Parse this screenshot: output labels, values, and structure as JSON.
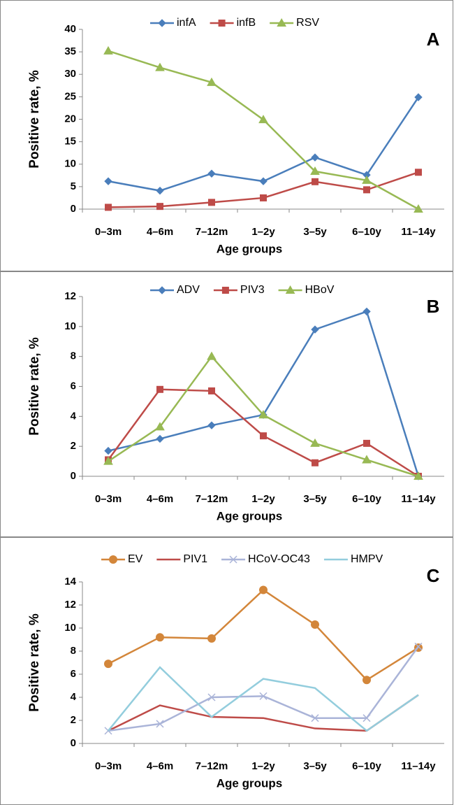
{
  "chart_data": [
    {
      "type": "line",
      "panel": "A",
      "y_label": "Positive rate, %",
      "x_label": "Age groups",
      "categories": [
        "0–3m",
        "4–6m",
        "7–12m",
        "1–2y",
        "3–5y",
        "6–10y",
        "11–14y"
      ],
      "ylim": [
        0,
        40
      ],
      "yticks": [
        0,
        5,
        10,
        15,
        20,
        25,
        30,
        35,
        40
      ],
      "series": [
        {
          "name": "infA",
          "color": "#4a7ebb",
          "marker": "diamond",
          "values": [
            6.2,
            4.1,
            7.9,
            6.2,
            11.5,
            7.6,
            24.9
          ]
        },
        {
          "name": "infB",
          "color": "#be4b48",
          "marker": "square",
          "values": [
            0.4,
            0.6,
            1.5,
            2.5,
            6.1,
            4.3,
            8.2
          ]
        },
        {
          "name": "RSV",
          "color": "#98b954",
          "marker": "triangle",
          "values": [
            35.2,
            31.5,
            28.2,
            19.9,
            8.4,
            6.4,
            0
          ]
        }
      ]
    },
    {
      "type": "line",
      "panel": "B",
      "y_label": "Positive rate, %",
      "x_label": "Age groups",
      "categories": [
        "0–3m",
        "4–6m",
        "7–12m",
        "1–2y",
        "3–5y",
        "6–10y",
        "11–14y"
      ],
      "ylim": [
        0,
        12
      ],
      "yticks": [
        0,
        2,
        4,
        6,
        8,
        10,
        12
      ],
      "series": [
        {
          "name": "ADV",
          "color": "#4a7ebb",
          "marker": "diamond",
          "values": [
            1.7,
            2.5,
            3.4,
            4.1,
            9.8,
            11.0,
            0
          ]
        },
        {
          "name": "PIV3",
          "color": "#be4b48",
          "marker": "square",
          "values": [
            1.1,
            5.8,
            5.7,
            2.7,
            0.9,
            2.2,
            0
          ]
        },
        {
          "name": "HBoV",
          "color": "#98b954",
          "marker": "triangle",
          "values": [
            1.0,
            3.3,
            8.0,
            4.1,
            2.2,
            1.1,
            0
          ]
        }
      ]
    },
    {
      "type": "line",
      "panel": "C",
      "y_label": "Positive rate, %",
      "x_label": "Age groups",
      "categories": [
        "0–3m",
        "4–6m",
        "7–12m",
        "1–2y",
        "3–5y",
        "6–10y",
        "11–14y"
      ],
      "ylim": [
        0,
        14
      ],
      "yticks": [
        0,
        2,
        4,
        6,
        8,
        10,
        12,
        14
      ],
      "series": [
        {
          "name": "EV",
          "color": "#d3863a",
          "marker": "circle",
          "values": [
            6.9,
            9.2,
            9.1,
            13.3,
            10.3,
            5.5,
            8.3
          ]
        },
        {
          "name": "PIV1",
          "color": "#be4b48",
          "marker": "none",
          "values": [
            1.1,
            3.3,
            2.3,
            2.2,
            1.3,
            1.1,
            4.2
          ]
        },
        {
          "name": "HCoV-OC43",
          "color": "#aab4d8",
          "marker": "x",
          "values": [
            1.1,
            1.7,
            4.0,
            4.1,
            2.2,
            2.2,
            8.4
          ]
        },
        {
          "name": "HMPV",
          "color": "#93cddd",
          "marker": "none",
          "values": [
            1.1,
            6.6,
            2.3,
            5.6,
            4.8,
            1.1,
            4.2
          ]
        }
      ]
    }
  ]
}
